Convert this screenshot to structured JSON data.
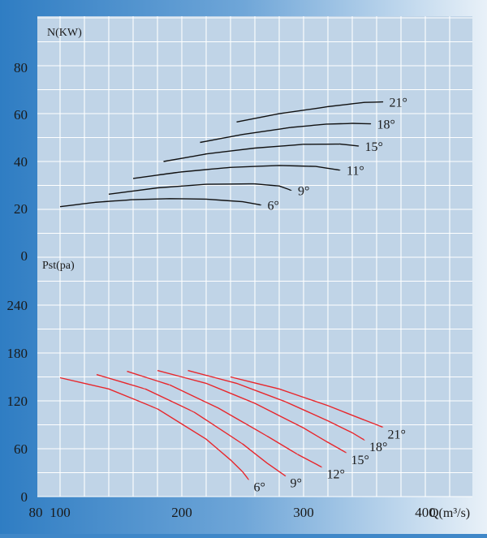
{
  "chart_data": [
    {
      "type": "line",
      "ylabel": "N(KW)",
      "y_ticks": [
        "0",
        "20",
        "40",
        "60",
        "80"
      ],
      "ylim": [
        0,
        90
      ],
      "xlim": [
        80,
        425
      ],
      "grid": true,
      "line_color": "#111111",
      "series": [
        {
          "name": "6°",
          "x": [
            100,
            130,
            160,
            190,
            220,
            250,
            265
          ],
          "y": [
            20.8,
            22.7,
            23.8,
            24.2,
            24.0,
            22.9,
            21.5
          ]
        },
        {
          "name": "9°",
          "x": [
            140,
            180,
            220,
            260,
            280,
            290
          ],
          "y": [
            26.1,
            28.8,
            30.3,
            30.5,
            29.6,
            27.7
          ]
        },
        {
          "name": "11°",
          "x": [
            160,
            200,
            240,
            280,
            310,
            330
          ],
          "y": [
            32.8,
            35.6,
            37.5,
            38.3,
            37.9,
            36.3
          ]
        },
        {
          "name": "15°",
          "x": [
            185,
            220,
            260,
            300,
            330,
            345
          ],
          "y": [
            40.0,
            43.2,
            45.7,
            47.3,
            47.4,
            46.6
          ]
        },
        {
          "name": "18°",
          "x": [
            215,
            250,
            290,
            320,
            340,
            355
          ],
          "y": [
            48.1,
            51.5,
            54.5,
            55.9,
            56.2,
            56.0
          ]
        },
        {
          "name": "21°",
          "x": [
            245,
            280,
            320,
            350,
            365
          ],
          "y": [
            56.8,
            60.3,
            63.3,
            65.1,
            65.3
          ]
        }
      ]
    },
    {
      "type": "line",
      "ylabel": "Pst(pa)",
      "xlabel": "Q(m³/s)",
      "y_ticks": [
        "0",
        "60",
        "120",
        "180",
        "240"
      ],
      "x_ticks": [
        "80",
        "100",
        "200",
        "300",
        "400"
      ],
      "ylim": [
        0,
        270
      ],
      "xlim": [
        80,
        425
      ],
      "grid": true,
      "line_color": "#e8262b",
      "series": [
        {
          "name": "6°",
          "x": [
            100,
            140,
            180,
            220,
            240,
            250,
            255
          ],
          "y": [
            149,
            135,
            110,
            72,
            46,
            31,
            21
          ]
        },
        {
          "name": "9°",
          "x": [
            130,
            170,
            210,
            250,
            270,
            285
          ],
          "y": [
            153,
            135,
            106,
            66,
            42,
            26
          ]
        },
        {
          "name": "12°",
          "x": [
            155,
            190,
            230,
            270,
            295,
            315
          ],
          "y": [
            157,
            140,
            111,
            76,
            53,
            37
          ]
        },
        {
          "name": "15°",
          "x": [
            180,
            220,
            260,
            300,
            320,
            335
          ],
          "y": [
            158,
            142,
            117,
            86,
            68,
            55
          ]
        },
        {
          "name": "18°",
          "x": [
            205,
            245,
            285,
            320,
            340,
            350
          ],
          "y": [
            158,
            142,
            119,
            95,
            80,
            71
          ]
        },
        {
          "name": "21°",
          "x": [
            240,
            280,
            320,
            350,
            365
          ],
          "y": [
            150,
            135,
            114,
            96,
            87
          ]
        }
      ]
    }
  ]
}
